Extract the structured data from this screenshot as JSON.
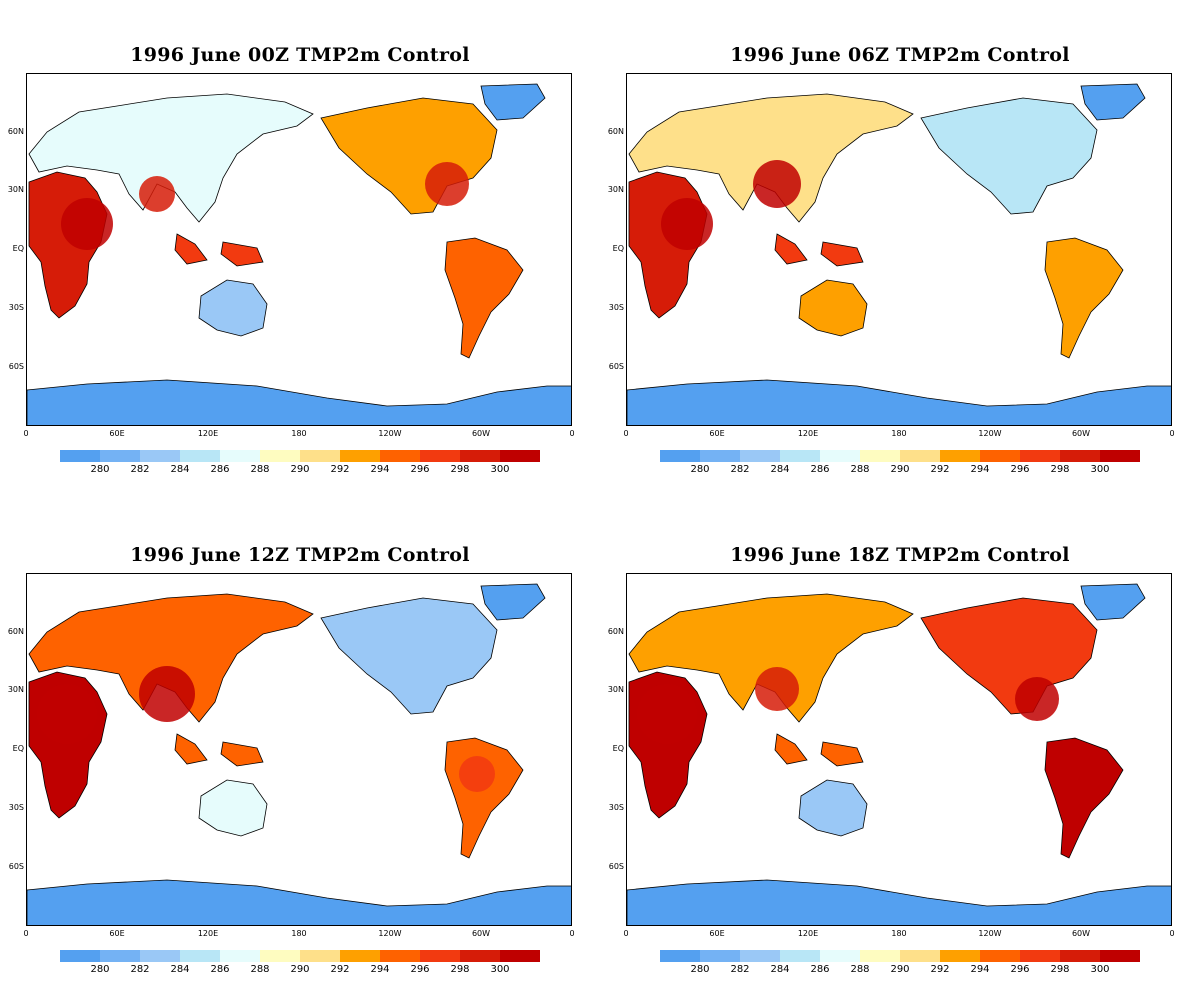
{
  "panels": [
    {
      "title": "1996 June  00Z TMP2m Control",
      "id": "00z"
    },
    {
      "title": "1996  June 06Z TMP2m Control",
      "id": "06z"
    },
    {
      "title": "1996  June 12Z TMP2m Control",
      "id": "12z"
    },
    {
      "title": "1996  June 18Z TMP2m Control",
      "id": "18z"
    }
  ],
  "lat_labels": [
    "60N",
    "30N",
    "EQ",
    "30S",
    "60S"
  ],
  "lon_labels": [
    "0",
    "60E",
    "120E",
    "180",
    "120W",
    "60W",
    "0"
  ],
  "colorbar": {
    "labels": [
      "280",
      "282",
      "284",
      "286",
      "288",
      "290",
      "292",
      "294",
      "296",
      "298",
      "300"
    ],
    "colors": [
      "#54a0f0",
      "#74b2f4",
      "#9ac8f6",
      "#b8e6f6",
      "#e6fcfc",
      "#fefcc0",
      "#fee08a",
      "#fea000",
      "#fe6200",
      "#f23a10",
      "#d61c08",
      "#bf0000"
    ]
  }
}
